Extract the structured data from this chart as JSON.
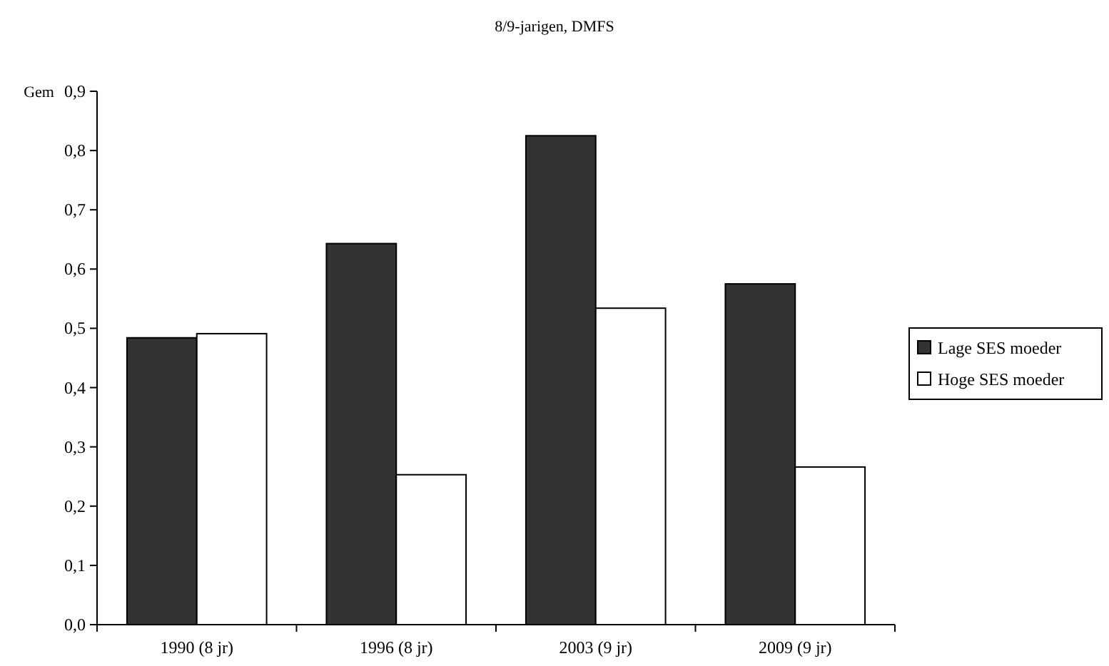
{
  "chart_data": {
    "type": "bar",
    "title": "8/9-jarigen, DMFS",
    "ylabel": "Gem",
    "categories": [
      "1990 (8 jr)",
      "1996 (8 jr)",
      "2003 (9 jr)",
      "2009 (9 jr)"
    ],
    "series": [
      {
        "name": "Lage SES moeder",
        "color": "#333333",
        "values": [
          0.484,
          0.643,
          0.825,
          0.575
        ]
      },
      {
        "name": "Hoge SES moeder",
        "color": "#ffffff",
        "values": [
          0.491,
          0.253,
          0.534,
          0.266
        ]
      }
    ],
    "ylim": [
      0,
      0.9
    ],
    "yticks": [
      {
        "value": 0,
        "label": "0,0"
      },
      {
        "value": 0.1,
        "label": "0,1"
      },
      {
        "value": 0.2,
        "label": "0,2"
      },
      {
        "value": 0.3,
        "label": "0,3"
      },
      {
        "value": 0.4,
        "label": "0,4"
      },
      {
        "value": 0.5,
        "label": "0,5"
      },
      {
        "value": 0.6,
        "label": "0,6"
      },
      {
        "value": 0.7,
        "label": "0,7"
      },
      {
        "value": 0.8,
        "label": "0,8"
      },
      {
        "value": 0.9,
        "label": "0,9"
      }
    ],
    "legend": "right"
  }
}
